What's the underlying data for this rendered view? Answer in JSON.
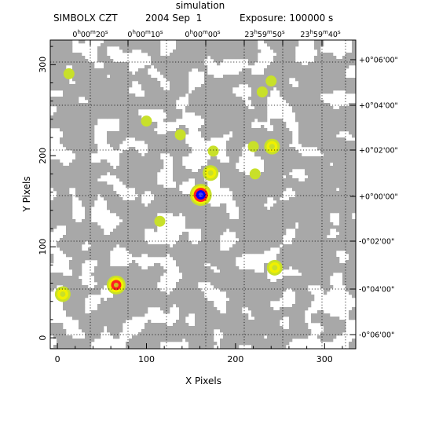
{
  "header": {
    "title": "simulation",
    "instrument": "SIMBOLX CZT",
    "date": "2004 Sep  1",
    "exposure": "Exposure: 100000 s"
  },
  "chart_data": {
    "type": "heatmap",
    "title": "simulation",
    "xlabel": "X Pixels",
    "ylabel": "Y Pixels",
    "xlim": [
      -8,
      335
    ],
    "ylim": [
      -12,
      327
    ],
    "x_ticks": [
      0,
      100,
      200,
      300
    ],
    "y_ticks": [
      0,
      100,
      200,
      300
    ],
    "grid": true,
    "grid_style": "dotted",
    "top_axis_labels": [
      "0h00m20s",
      "0h00m10s",
      "0h00m00s",
      "23h59m50s",
      "23h59m40s"
    ],
    "right_axis_labels": [
      "+0°06'00\"",
      "+0°04'00\"",
      "+0°02'00\"",
      "+0°00'00\"",
      "-0°02'00\"",
      "-0°04'00\"",
      "-0°06'00\""
    ],
    "colors": {
      "background_noise": "#a8a8a8",
      "empty": "#ffffff",
      "low": "#c8e02a",
      "medium": "#f0f000",
      "high": "#ff2020",
      "peak": "#0000ff"
    },
    "sources": [
      {
        "x": 161,
        "y": 157,
        "level": "peak"
      },
      {
        "x": 66,
        "y": 58,
        "level": "high"
      },
      {
        "x": 6,
        "y": 48,
        "level": "medium"
      },
      {
        "x": 241,
        "y": 210,
        "level": "medium"
      },
      {
        "x": 172,
        "y": 181,
        "level": "medium"
      },
      {
        "x": 244,
        "y": 77,
        "level": "medium"
      },
      {
        "x": 222,
        "y": 180,
        "level": "low"
      },
      {
        "x": 138,
        "y": 223,
        "level": "low"
      },
      {
        "x": 175,
        "y": 205,
        "level": "low"
      },
      {
        "x": 115,
        "y": 128,
        "level": "low"
      },
      {
        "x": 13,
        "y": 290,
        "level": "low"
      },
      {
        "x": 100,
        "y": 238,
        "level": "low"
      },
      {
        "x": 220,
        "y": 210,
        "level": "low"
      },
      {
        "x": 240,
        "y": 282,
        "level": "low"
      },
      {
        "x": 230,
        "y": 270,
        "level": "low"
      }
    ]
  }
}
